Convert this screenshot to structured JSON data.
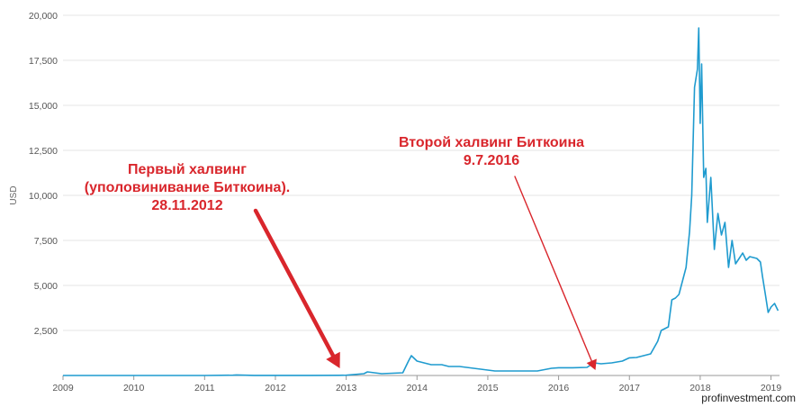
{
  "watermark": "profinvestment.com",
  "colors": {
    "series": "#1f9bcf",
    "annotation": "#d9262c",
    "grid": "#e6e6e6",
    "axis": "#999999"
  },
  "chart_data": {
    "type": "line",
    "ylabel": "USD",
    "xlabel": "",
    "xlim": [
      2009,
      2019.12
    ],
    "ylim": [
      0,
      20000
    ],
    "grid": true,
    "x_ticks": [
      {
        "value": 2009,
        "label": "2009"
      },
      {
        "value": 2010,
        "label": "2010"
      },
      {
        "value": 2011,
        "label": "2011"
      },
      {
        "value": 2012,
        "label": "2012"
      },
      {
        "value": 2013,
        "label": "2013"
      },
      {
        "value": 2014,
        "label": "2014"
      },
      {
        "value": 2015,
        "label": "2015"
      },
      {
        "value": 2016,
        "label": "2016"
      },
      {
        "value": 2017,
        "label": "2017"
      },
      {
        "value": 2018,
        "label": "2018"
      },
      {
        "value": 2019,
        "label": "2019"
      }
    ],
    "y_ticks": [
      {
        "value": 2500,
        "label": "2,500"
      },
      {
        "value": 5000,
        "label": "5,000"
      },
      {
        "value": 7500,
        "label": "7,500"
      },
      {
        "value": 10000,
        "label": "10,000"
      },
      {
        "value": 12500,
        "label": "12,500"
      },
      {
        "value": 15000,
        "label": "15,000"
      },
      {
        "value": 17500,
        "label": "17,500"
      },
      {
        "value": 20000,
        "label": "20,000"
      }
    ],
    "series": [
      {
        "x": [
          2009.0,
          2010.0,
          2010.6,
          2011.0,
          2011.4,
          2011.45,
          2011.7,
          2012.0,
          2012.5,
          2012.9,
          2013.0,
          2013.25,
          2013.3,
          2013.5,
          2013.8,
          2013.88,
          2013.92,
          2014.0,
          2014.1,
          2014.2,
          2014.35,
          2014.45,
          2014.6,
          2014.8,
          2015.0,
          2015.1,
          2015.3,
          2015.5,
          2015.7,
          2015.9,
          2016.0,
          2016.2,
          2016.4,
          2016.5,
          2016.6,
          2016.75,
          2016.9,
          2017.0,
          2017.1,
          2017.2,
          2017.3,
          2017.4,
          2017.45,
          2017.55,
          2017.6,
          2017.65,
          2017.7,
          2017.8,
          2017.85,
          2017.88,
          2017.92,
          2017.96,
          2017.98,
          2018.0,
          2018.02,
          2018.05,
          2018.08,
          2018.1,
          2018.15,
          2018.2,
          2018.25,
          2018.3,
          2018.35,
          2018.4,
          2018.45,
          2018.5,
          2018.55,
          2018.6,
          2018.65,
          2018.7,
          2018.8,
          2018.85,
          2018.88,
          2018.92,
          2018.96,
          2019.0,
          2019.05,
          2019.1
        ],
        "y": [
          0,
          0,
          0.1,
          0.3,
          15,
          30,
          5,
          5,
          7,
          12,
          13,
          100,
          200,
          100,
          150,
          800,
          1100,
          800,
          700,
          600,
          600,
          500,
          500,
          400,
          300,
          250,
          250,
          250,
          250,
          400,
          430,
          430,
          450,
          700,
          650,
          700,
          800,
          980,
          1000,
          1100,
          1200,
          1900,
          2500,
          2700,
          4200,
          4300,
          4500,
          6000,
          8000,
          10000,
          16000,
          17000,
          19300,
          14000,
          17300,
          11000,
          11500,
          8500,
          11000,
          7000,
          9000,
          7800,
          8500,
          6000,
          7500,
          6200,
          6500,
          6800,
          6400,
          6600,
          6500,
          6300,
          5500,
          4500,
          3500,
          3800,
          4000,
          3600
        ]
      }
    ],
    "annotations": [
      {
        "lines": [
          "Первый халвинг",
          "(уполовинивание Биткоина).",
          "28.11.2012"
        ],
        "target": {
          "x": 2012.91,
          "y": 0
        }
      },
      {
        "lines": [
          "Второй халвинг Биткоина",
          "9.7.2016"
        ],
        "target": {
          "x": 2016.52,
          "y": 0
        }
      }
    ]
  }
}
